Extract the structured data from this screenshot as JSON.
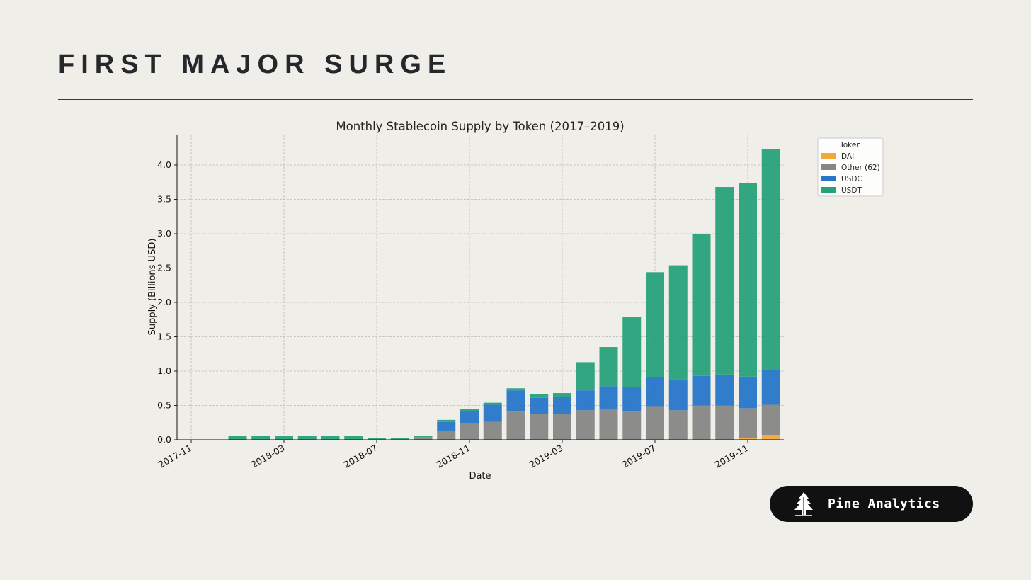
{
  "slide": {
    "title": "FIRST MAJOR SURGE",
    "brand": "Pine Analytics",
    "brand_icon": "pine-tree-icon"
  },
  "colors": {
    "background": "#efeee8",
    "DAI": "#f0a93a",
    "Other (62)": "#868686",
    "USDC": "#2775ca",
    "USDT": "#26a17b"
  },
  "chart_data": {
    "type": "bar",
    "stacked": true,
    "title": "Monthly Stablecoin Supply by Token (2017–2019)",
    "xlabel": "Date",
    "ylabel": "Supply (Billions USD)",
    "ylim": [
      0,
      4.4
    ],
    "yticks": [
      "0.0",
      "0.5",
      "1.0",
      "1.5",
      "2.0",
      "2.5",
      "3.0",
      "3.5",
      "4.0"
    ],
    "xticks": [
      "2017-11",
      "2018-03",
      "2018-07",
      "2018-11",
      "2019-03",
      "2019-07",
      "2019-11"
    ],
    "grid": true,
    "legend": {
      "title": "Token",
      "position": "top-right outside"
    },
    "categories": [
      "2017-11",
      "2017-12",
      "2018-01",
      "2018-02",
      "2018-03",
      "2018-04",
      "2018-05",
      "2018-06",
      "2018-07",
      "2018-08",
      "2018-09",
      "2018-10",
      "2018-11",
      "2018-12",
      "2019-01",
      "2019-02",
      "2019-03",
      "2019-04",
      "2019-05",
      "2019-06",
      "2019-07",
      "2019-08",
      "2019-09",
      "2019-10",
      "2019-11",
      "2019-12"
    ],
    "series": [
      {
        "name": "DAI",
        "values": [
          0,
          0,
          0,
          0,
          0,
          0,
          0,
          0,
          0,
          0,
          0,
          0,
          0,
          0,
          0,
          0,
          0,
          0,
          0,
          0,
          0,
          0,
          0,
          0,
          0.03,
          0.07
        ]
      },
      {
        "name": "Other (62)",
        "values": [
          0,
          0,
          0,
          0,
          0,
          0,
          0,
          0,
          0.01,
          0.01,
          0.04,
          0.13,
          0.24,
          0.26,
          0.41,
          0.38,
          0.38,
          0.43,
          0.45,
          0.41,
          0.48,
          0.43,
          0.5,
          0.5,
          0.43,
          0.44
        ]
      },
      {
        "name": "USDC",
        "values": [
          0,
          0,
          0,
          0,
          0,
          0,
          0,
          0,
          0,
          0,
          0,
          0.13,
          0.18,
          0.25,
          0.31,
          0.23,
          0.24,
          0.29,
          0.33,
          0.36,
          0.43,
          0.45,
          0.43,
          0.45,
          0.46,
          0.51
        ]
      },
      {
        "name": "USDT",
        "values": [
          0,
          0,
          0.06,
          0.06,
          0.06,
          0.06,
          0.06,
          0.06,
          0.02,
          0.02,
          0.02,
          0.03,
          0.03,
          0.03,
          0.03,
          0.06,
          0.06,
          0.41,
          0.57,
          1.02,
          1.53,
          1.66,
          2.07,
          2.73,
          2.82,
          3.21
        ]
      }
    ]
  }
}
